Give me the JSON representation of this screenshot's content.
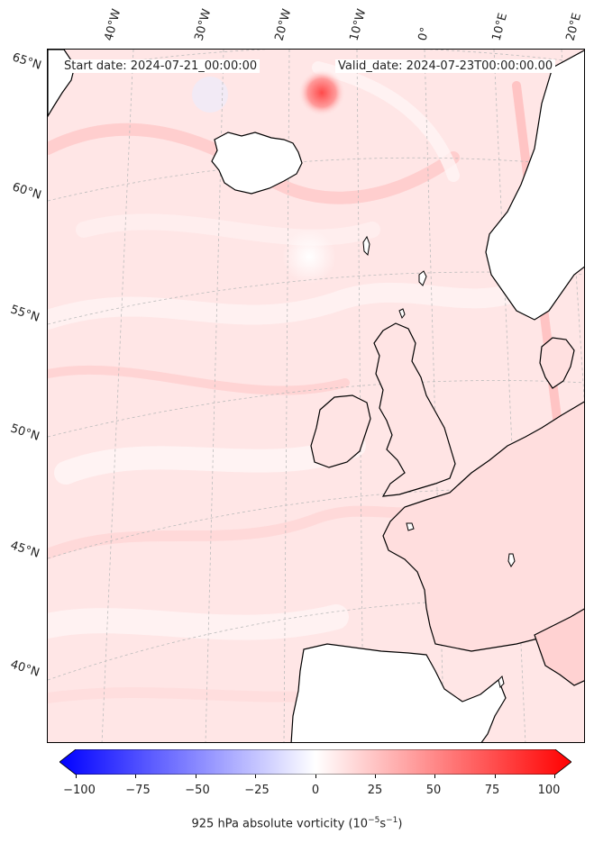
{
  "header": {
    "start_date": "Start date: 2024-07-21_00:00:00",
    "valid_date": "Valid_date: 2024-07-23T00:00:00.00"
  },
  "longitude_labels": [
    "40°W",
    "30°W",
    "20°W",
    "10°W",
    "0°",
    "10°E",
    "20°E"
  ],
  "latitude_labels": [
    "65°N",
    "60°N",
    "55°N",
    "50°N",
    "45°N",
    "40°N"
  ],
  "colorbar": {
    "ticks": [
      "−100",
      "−75",
      "−50",
      "−25",
      "0",
      "25",
      "50",
      "75",
      "100"
    ],
    "label": "925 hPa absolute vorticity (10",
    "label_exp1": "−5",
    "label_mid": "s",
    "label_exp2": "−1",
    "label_end": ")",
    "min": -100,
    "max": 100,
    "min_color": "#0000ff",
    "mid_color": "#ffffff",
    "max_color": "#ff0000"
  },
  "colors": {
    "background_field": "#ffe6e6",
    "land_outline": "#000000",
    "graticule": "#bbbbbb"
  }
}
